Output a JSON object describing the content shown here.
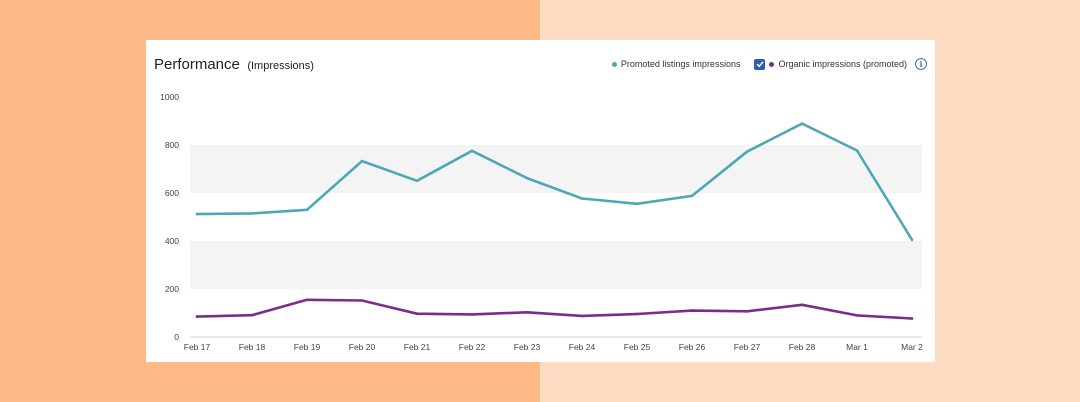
{
  "header": {
    "title": "Performance",
    "subtitle": "(Impressions)"
  },
  "legend": {
    "items": [
      {
        "label": "Promoted listings impressions",
        "color": "#4ea8b4"
      },
      {
        "label": "Organic impressions (promoted)",
        "color": "#7b2d8b",
        "checked": true
      }
    ],
    "info_icon": "info-icon"
  },
  "colors": {
    "band": "#f4f4f5",
    "background_left": "#ffb888",
    "background_right": "#fedcc3"
  },
  "chart_data": {
    "type": "line",
    "title": "Performance (Impressions)",
    "categories": [
      "Feb 17",
      "Feb 18",
      "Feb 19",
      "Feb 20",
      "Feb 21",
      "Feb 22",
      "Feb 23",
      "Feb 24",
      "Feb 25",
      "Feb 26",
      "Feb 27",
      "Feb 28",
      "Mar 1",
      "Mar 2"
    ],
    "series": [
      {
        "name": "Promoted listings impressions",
        "color": "#4ea8b4",
        "values": [
          512,
          515,
          530,
          733,
          651,
          776,
          662,
          577,
          555,
          588,
          772,
          889,
          777,
          405
        ]
      },
      {
        "name": "Organic impressions (promoted)",
        "color": "#7b2d8b",
        "values": [
          85,
          91,
          155,
          152,
          97,
          94,
          103,
          88,
          96,
          110,
          107,
          134,
          90,
          77
        ]
      }
    ],
    "yticks": [
      0,
      200,
      400,
      600,
      800,
      1000
    ],
    "ylim": [
      0,
      1000
    ],
    "legend_position": "top-right"
  }
}
